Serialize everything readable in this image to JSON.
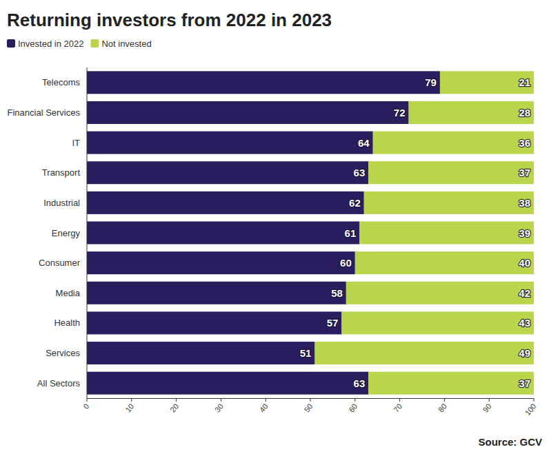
{
  "chart_data": {
    "type": "bar",
    "orientation": "horizontal",
    "stacked": true,
    "data_labels": true,
    "grid": false,
    "legend": "top-left",
    "title": "Returning investors from 2022 in 2023",
    "source": "Source: GCV",
    "categories": [
      "Telecoms",
      "Financial Services",
      "IT",
      "Transport",
      "Industrial",
      "Energy",
      "Consumer",
      "Media",
      "Health",
      "Services",
      "All Sectors"
    ],
    "series": [
      {
        "name": "Invested in 2022",
        "color": "#2a1e5f",
        "values": [
          79,
          72,
          64,
          63,
          62,
          61,
          60,
          58,
          57,
          51,
          63
        ]
      },
      {
        "name": "Not invested",
        "color": "#b8d54b",
        "values": [
          21,
          28,
          36,
          37,
          38,
          39,
          40,
          42,
          43,
          49,
          37
        ]
      }
    ],
    "xlim": [
      0,
      100
    ],
    "xticks": [
      0,
      10,
      20,
      30,
      40,
      50,
      60,
      70,
      80,
      90,
      100
    ]
  }
}
